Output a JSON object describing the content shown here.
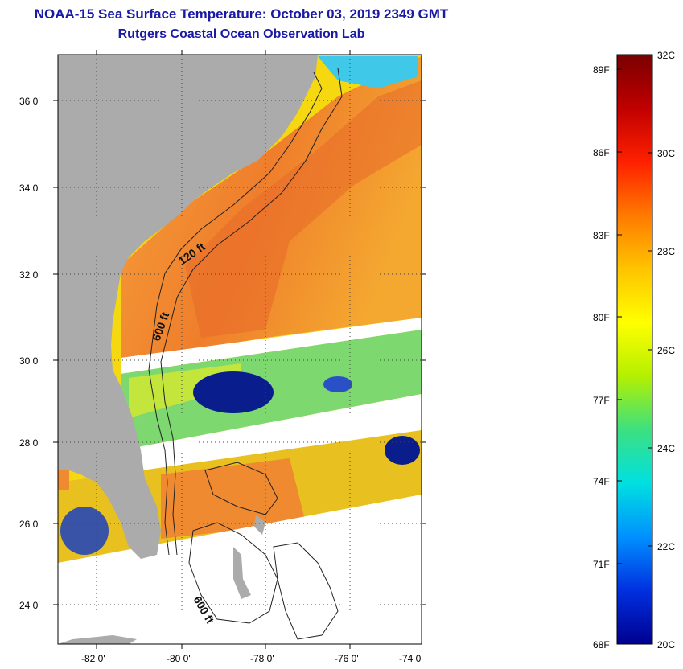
{
  "header": {
    "title": "NOAA-15 Sea Surface Temperature:  October 03, 2019 2349 GMT",
    "subtitle": "Rutgers Coastal Ocean Observation Lab"
  },
  "map": {
    "lat_labels": [
      "36 0'",
      "34 0'",
      "32 0'",
      "30 0'",
      "28 0'",
      "26 0'",
      "24 0'"
    ],
    "lon_labels": [
      "-82 0'",
      "-80 0'",
      "-78 0'",
      "-76 0'",
      "-74 0'"
    ],
    "contours": [
      "120 ft",
      "600 ft",
      "600 ft"
    ]
  },
  "colorbar": {
    "fahrenheit_labels": [
      "89F",
      "86F",
      "83F",
      "80F",
      "77F",
      "74F",
      "71F",
      "68F"
    ],
    "celsius_labels": [
      "32C",
      "30C",
      "28C",
      "26C",
      "24C",
      "22C",
      "20C"
    ],
    "colors": [
      "#7a0000",
      "#c00000",
      "#ff2000",
      "#ff7a00",
      "#ffc400",
      "#ffff00",
      "#b4f000",
      "#3ce080",
      "#00e0e0",
      "#0090ff",
      "#0030e0",
      "#000090"
    ]
  },
  "legend_colors": {
    "land": "#ababab",
    "cloud": "#ffffff",
    "warm_stream": "#f08a30",
    "shelf": "#f8d800",
    "cold_patch": "#0a1d8c",
    "title": "#1a1aa6"
  }
}
